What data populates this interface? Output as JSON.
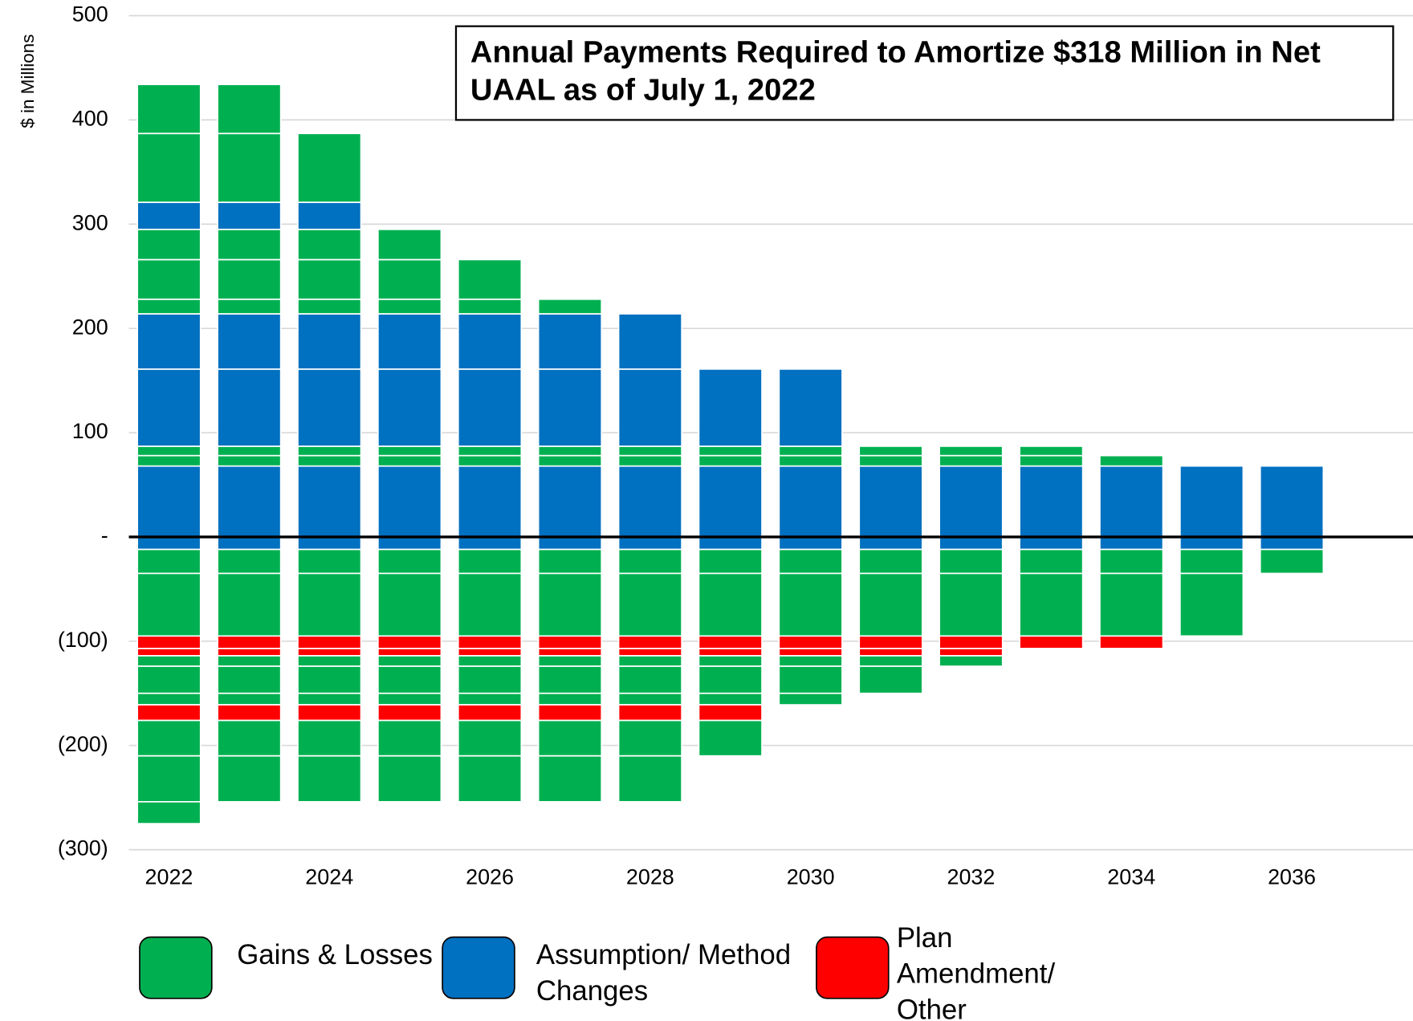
{
  "chart_data": {
    "type": "stacked_bar",
    "title": "Annual Payments Required to Amortize $318 Million in Net UAAL as of July 1, 2022",
    "y_label": "$ in Millions",
    "categories": [
      "2022",
      null,
      "2024",
      null,
      "2026",
      null,
      "2028",
      null,
      "2030",
      null,
      "2032",
      null,
      "2034",
      null,
      "2036"
    ],
    "ylim": [
      -300,
      500
    ],
    "yticks": [
      500,
      400,
      300,
      200,
      100,
      {
        "value": 0,
        "label": "-"
      },
      {
        "value": -100,
        "label": "(100)"
      },
      {
        "value": -200,
        "label": "(200)"
      },
      {
        "value": -300,
        "label": "(300)"
      }
    ],
    "grid": true,
    "legend": "bottom",
    "series": [
      {
        "name": "Gains & Losses",
        "color": "#00b050"
      },
      {
        "name": "Assumption/ Method Changes",
        "color": "#0070c0"
      },
      {
        "name": "Plan Amendment/ Other",
        "color": "#ff0000"
      }
    ],
    "layers": [
      {
        "series": 1,
        "values": [
          68,
          68,
          68,
          68,
          68,
          68,
          68,
          68,
          68,
          68,
          68,
          68,
          68,
          68,
          68
        ]
      },
      {
        "series": 0,
        "values": [
          10,
          10,
          10,
          10,
          10,
          10,
          10,
          10,
          10,
          10,
          10,
          10,
          10,
          null,
          null
        ]
      },
      {
        "series": 0,
        "values": [
          9,
          9,
          9,
          9,
          9,
          9,
          9,
          9,
          9,
          9,
          9,
          9,
          null,
          null,
          null
        ]
      },
      {
        "series": 1,
        "values": [
          74,
          74,
          74,
          74,
          74,
          74,
          74,
          74,
          74,
          null,
          null,
          null,
          null,
          null,
          null
        ]
      },
      {
        "series": 1,
        "values": [
          53,
          53,
          53,
          53,
          53,
          53,
          53,
          null,
          null,
          null,
          null,
          null,
          null,
          null,
          null
        ]
      },
      {
        "series": 0,
        "values": [
          14,
          14,
          14,
          14,
          14,
          14,
          null,
          null,
          null,
          null,
          null,
          null,
          null,
          null,
          null
        ]
      },
      {
        "series": 0,
        "values": [
          38,
          38,
          38,
          38,
          38,
          null,
          null,
          null,
          null,
          null,
          null,
          null,
          null,
          null,
          null
        ]
      },
      {
        "series": 0,
        "values": [
          29,
          29,
          29,
          29,
          null,
          null,
          null,
          null,
          null,
          null,
          null,
          null,
          null,
          null,
          null
        ]
      },
      {
        "series": 1,
        "values": [
          26,
          26,
          26,
          null,
          null,
          null,
          null,
          null,
          null,
          null,
          null,
          null,
          null,
          null,
          null
        ]
      },
      {
        "series": 0,
        "values": [
          66,
          66,
          66,
          null,
          null,
          null,
          null,
          null,
          null,
          null,
          null,
          null,
          null,
          null,
          null
        ]
      },
      {
        "series": 0,
        "values": [
          47,
          47,
          null,
          null,
          null,
          null,
          null,
          null,
          null,
          null,
          null,
          null,
          null,
          null,
          null
        ]
      },
      {
        "series": 1,
        "values": [
          -12,
          -12,
          -12,
          -12,
          -12,
          -12,
          -12,
          -12,
          -12,
          -12,
          -12,
          -12,
          -12,
          -12,
          -12
        ]
      },
      {
        "series": 0,
        "values": [
          -23,
          -23,
          -23,
          -23,
          -23,
          -23,
          -23,
          -23,
          -23,
          -23,
          -23,
          -23,
          -23,
          -23,
          -23
        ]
      },
      {
        "series": 0,
        "values": [
          -60,
          -60,
          -60,
          -60,
          -60,
          -60,
          -60,
          -60,
          -60,
          -60,
          -60,
          -60,
          -60,
          -60,
          null
        ]
      },
      {
        "series": 2,
        "values": [
          -12,
          -12,
          -12,
          -12,
          -12,
          -12,
          -12,
          -12,
          -12,
          -12,
          -12,
          -12,
          -12,
          null,
          null
        ]
      },
      {
        "series": 2,
        "values": [
          -7,
          -7,
          -7,
          -7,
          -7,
          -7,
          -7,
          -7,
          -7,
          -7,
          -7,
          null,
          null,
          null,
          null
        ]
      },
      {
        "series": 0,
        "values": [
          -10,
          -10,
          -10,
          -10,
          -10,
          -10,
          -10,
          -10,
          -10,
          -10,
          -10,
          null,
          null,
          null,
          null
        ]
      },
      {
        "series": 0,
        "values": [
          -26,
          -26,
          -26,
          -26,
          -26,
          -26,
          -26,
          -26,
          -26,
          -26,
          null,
          null,
          null,
          null,
          null
        ]
      },
      {
        "series": 0,
        "values": [
          -11,
          -11,
          -11,
          -11,
          -11,
          -11,
          -11,
          -11,
          -11,
          null,
          null,
          null,
          null,
          null,
          null
        ]
      },
      {
        "series": 2,
        "values": [
          -15,
          -15,
          -15,
          -15,
          -15,
          -15,
          -15,
          -15,
          null,
          null,
          null,
          null,
          null,
          null,
          null
        ]
      },
      {
        "series": 0,
        "values": [
          -34,
          -34,
          -34,
          -34,
          -34,
          -34,
          -34,
          -34,
          null,
          null,
          null,
          null,
          null,
          null,
          null
        ]
      },
      {
        "series": 0,
        "values": [
          -44,
          -44,
          -44,
          -44,
          -44,
          -44,
          -44,
          null,
          null,
          null,
          null,
          null,
          null,
          null,
          null
        ]
      },
      {
        "series": 0,
        "values": [
          -21,
          null,
          null,
          null,
          null,
          null,
          null,
          null,
          null,
          null,
          null,
          null,
          null,
          null,
          null
        ]
      }
    ]
  }
}
